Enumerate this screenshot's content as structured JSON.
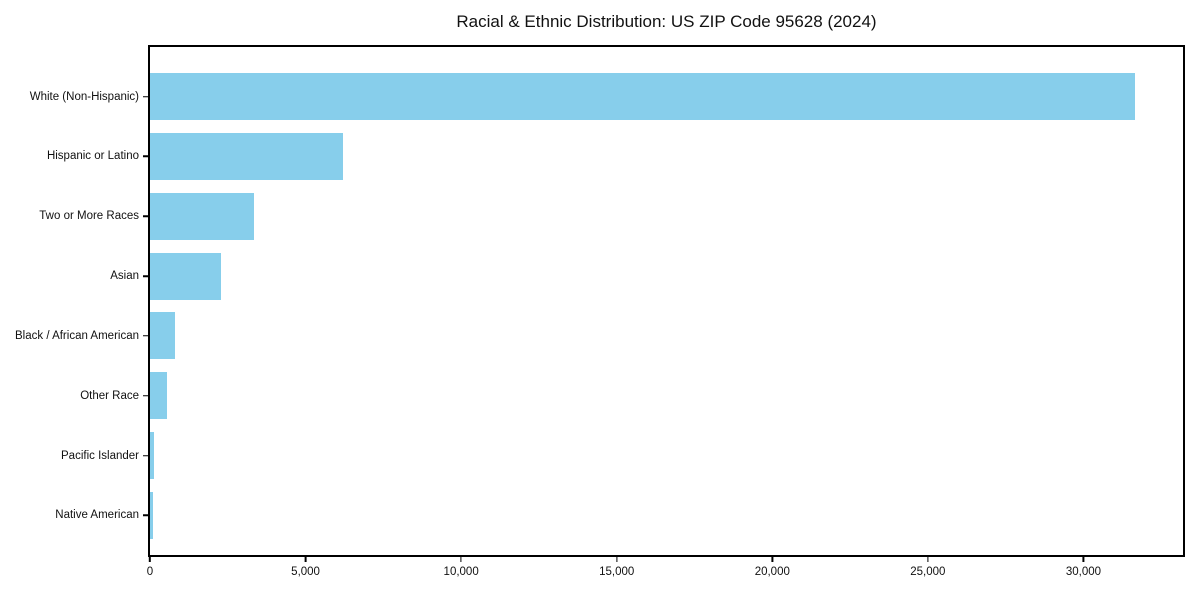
{
  "chart_data": {
    "type": "bar",
    "orientation": "horizontal",
    "title": "Racial & Ethnic Distribution: US ZIP Code 95628 (2024)",
    "categories": [
      "White (Non-Hispanic)",
      "Hispanic or Latino",
      "Two or More Races",
      "Asian",
      "Black / African American",
      "Other Race",
      "Pacific Islander",
      "Native American"
    ],
    "values": [
      31650,
      6190,
      3340,
      2270,
      800,
      550,
      120,
      110
    ],
    "xlabel": "",
    "ylabel": "",
    "xlim": [
      0,
      33200
    ],
    "xticks": [
      {
        "value": 0,
        "label": "0"
      },
      {
        "value": 5000,
        "label": "5,000"
      },
      {
        "value": 10000,
        "label": "10,000"
      },
      {
        "value": 15000,
        "label": "15,000"
      },
      {
        "value": 20000,
        "label": "20,000"
      },
      {
        "value": 25000,
        "label": "25,000"
      },
      {
        "value": 30000,
        "label": "30,000"
      }
    ],
    "grid": false,
    "legend": null,
    "bar_color": "#87CEEB",
    "spine_color": "#000000",
    "background_color": "#ffffff"
  }
}
